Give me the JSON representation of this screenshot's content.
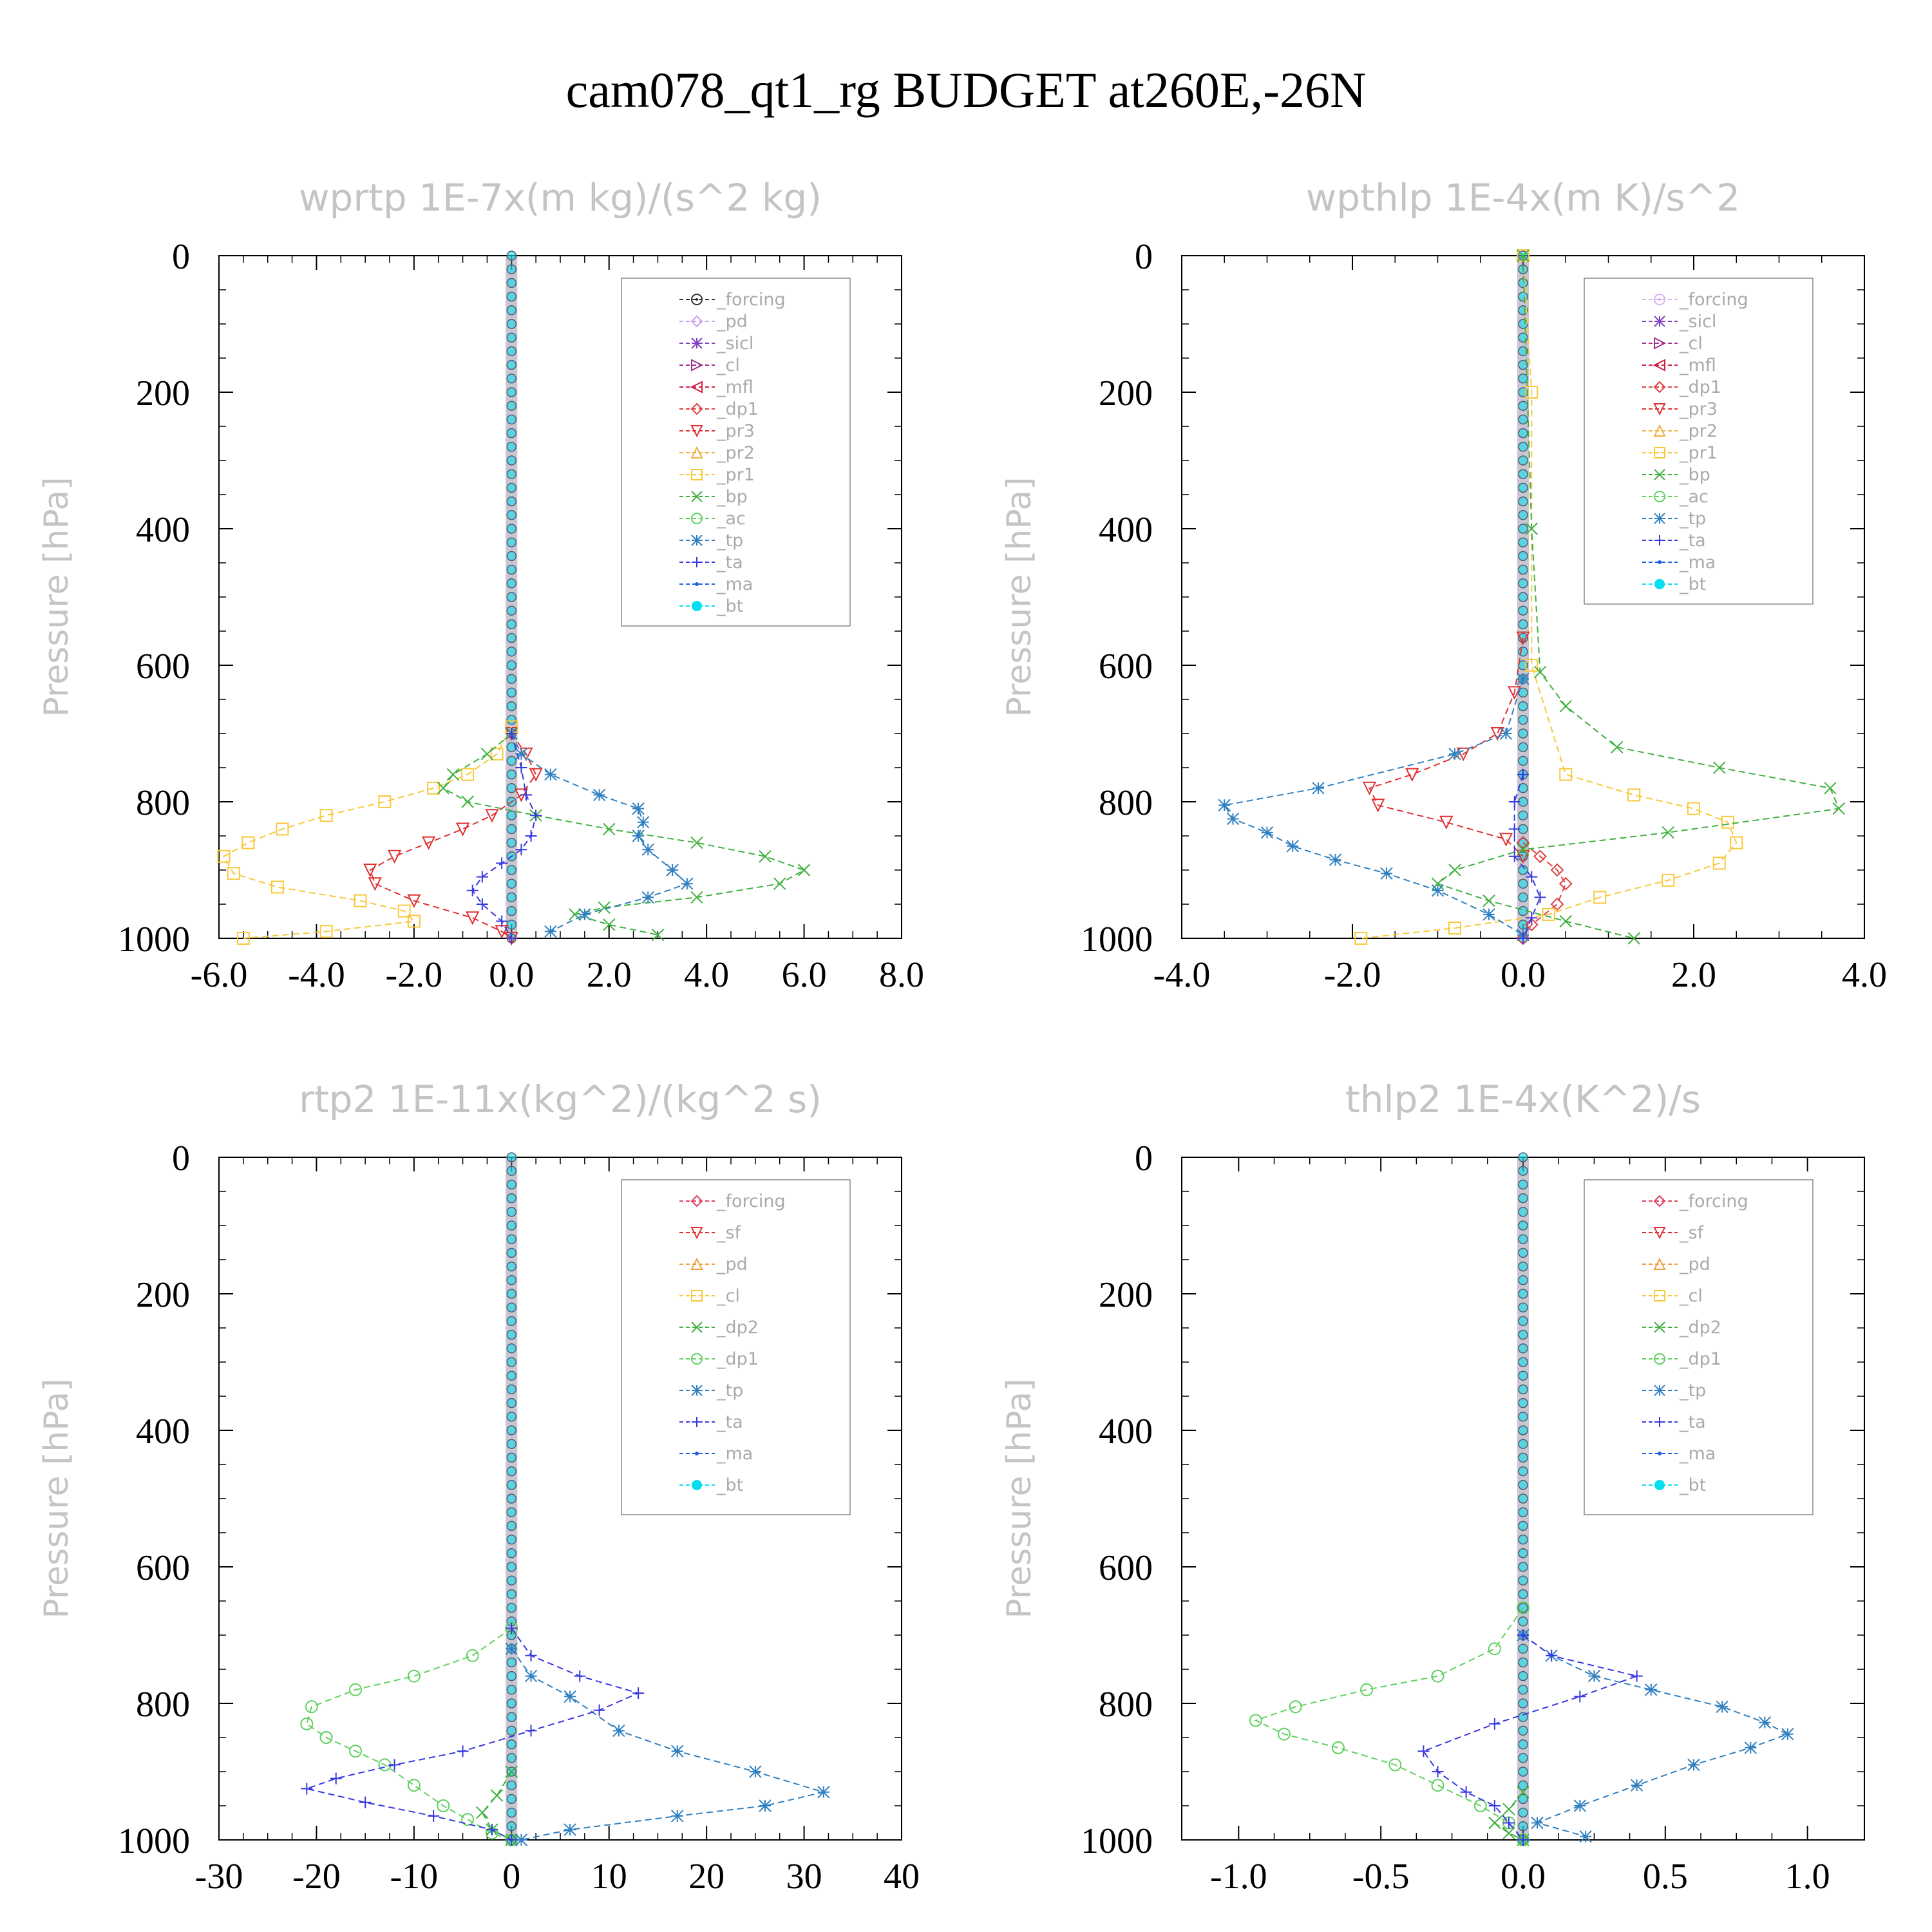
{
  "page": {
    "title": "cam078_qt1_rg  BUDGET at260E,-26N"
  },
  "chart_data": [
    {
      "type": "line",
      "title": "wprtp   1E-7x(m kg)/(s^2 kg)",
      "ylabel": "Pressure [hPa]",
      "xlim": [
        -6.0,
        8.0
      ],
      "ylim": [
        1000,
        0
      ],
      "xticks": [
        "-6.0",
        "-4.0",
        "-2.0",
        "0.0",
        "2.0",
        "4.0",
        "6.0",
        "8.0"
      ],
      "xtick_values": [
        -6,
        -4,
        -2,
        0,
        2,
        4,
        6,
        8
      ],
      "yticks": [
        "0",
        "200",
        "400",
        "600",
        "800",
        "1000"
      ],
      "ytick_values": [
        0,
        200,
        400,
        600,
        800,
        1000
      ],
      "legend_position": "top-right",
      "series": [
        {
          "name": "_forcing",
          "color": "#333333",
          "marker": "circle-dot",
          "x": [],
          "y": []
        },
        {
          "name": "_pd",
          "color": "#c9a0f0",
          "marker": "diamond",
          "x": [],
          "y": []
        },
        {
          "name": "_sicl",
          "color": "#8040c0",
          "marker": "star",
          "x": [],
          "y": []
        },
        {
          "name": "_cl",
          "color": "#a03090",
          "marker": "tri-right",
          "x": [],
          "y": []
        },
        {
          "name": "_mfl",
          "color": "#d02040",
          "marker": "tri-left",
          "x": [],
          "y": []
        },
        {
          "name": "_dp1",
          "color": "#e04040",
          "marker": "diamond",
          "x": [],
          "y": []
        },
        {
          "name": "_pr3",
          "color": "#e03030",
          "marker": "tri-down",
          "x": [
            0.0,
            0.3,
            0.5,
            0.2,
            -0.4,
            -1.0,
            -1.7,
            -2.4,
            -2.9,
            -2.8,
            -2.0,
            -0.8,
            -0.2,
            0.0
          ],
          "y": [
            700,
            730,
            760,
            790,
            820,
            840,
            860,
            880,
            900,
            920,
            945,
            970,
            990,
            1000
          ]
        },
        {
          "name": "_pr2",
          "color": "#f0b040",
          "marker": "tri-up",
          "x": [],
          "y": []
        },
        {
          "name": "_pr1",
          "color": "#f8c838",
          "marker": "square",
          "x": [
            0.0,
            -0.3,
            -0.9,
            -1.6,
            -2.6,
            -3.8,
            -4.7,
            -5.4,
            -5.9,
            -5.7,
            -4.8,
            -3.1,
            -2.2,
            -2.0,
            -3.8,
            -5.5
          ],
          "y": [
            690,
            730,
            760,
            780,
            800,
            820,
            840,
            860,
            880,
            905,
            925,
            945,
            960,
            975,
            990,
            1000
          ]
        },
        {
          "name": "_bp",
          "color": "#40b040",
          "marker": "x",
          "x": [
            0.0,
            -0.5,
            -1.2,
            -1.4,
            -0.9,
            0.5,
            2.0,
            3.8,
            5.2,
            6.0,
            5.5,
            3.8,
            1.9,
            1.3,
            2.0,
            3.0
          ],
          "y": [
            700,
            730,
            760,
            780,
            800,
            820,
            840,
            860,
            880,
            900,
            920,
            940,
            955,
            965,
            980,
            995
          ]
        },
        {
          "name": "_ac",
          "color": "#60d060",
          "marker": "circle",
          "x": [],
          "y": []
        },
        {
          "name": "_tp",
          "color": "#3080c0",
          "marker": "asterisk",
          "x": [
            0.0,
            0.2,
            0.8,
            1.8,
            2.6,
            2.7,
            2.6,
            2.8,
            3.3,
            3.6,
            2.8,
            1.5,
            0.8
          ],
          "y": [
            700,
            730,
            760,
            790,
            810,
            830,
            850,
            870,
            900,
            920,
            940,
            965,
            990
          ]
        },
        {
          "name": "_ta",
          "color": "#3838e0",
          "marker": "plus",
          "x": [
            0.0,
            0.2,
            0.3,
            0.5,
            0.4,
            0.2,
            -0.2,
            -0.6,
            -0.8,
            -0.6,
            -0.2,
            0.0
          ],
          "y": [
            700,
            750,
            790,
            820,
            850,
            870,
            890,
            910,
            930,
            950,
            975,
            1000
          ]
        },
        {
          "name": "_ma",
          "color": "#2060e0",
          "marker": "dot",
          "x": [],
          "y": []
        },
        {
          "name": "_bt",
          "color": "#00e0f0",
          "marker": "filled-circle",
          "x": [],
          "y": []
        }
      ]
    },
    {
      "type": "line",
      "title": "wpthlp   1E-4x(m K)/s^2",
      "ylabel": "Pressure [hPa]",
      "xlim": [
        -4.0,
        4.0
      ],
      "ylim": [
        1000,
        0
      ],
      "xticks": [
        "-4.0",
        "-2.0",
        "0.0",
        "2.0",
        "4.0"
      ],
      "xtick_values": [
        -4,
        -2,
        0,
        2,
        4
      ],
      "yticks": [
        "0",
        "200",
        "400",
        "600",
        "800",
        "1000"
      ],
      "ytick_values": [
        0,
        200,
        400,
        600,
        800,
        1000
      ],
      "legend_position": "top-right",
      "series": [
        {
          "name": "_forcing",
          "color": "#d8b0f0",
          "marker": "circle-dot",
          "x": [],
          "y": []
        },
        {
          "name": "_sicl",
          "color": "#8040c0",
          "marker": "star",
          "x": [],
          "y": []
        },
        {
          "name": "_cl",
          "color": "#a03090",
          "marker": "tri-right",
          "x": [],
          "y": []
        },
        {
          "name": "_mfl",
          "color": "#d02040",
          "marker": "tri-left",
          "x": [],
          "y": []
        },
        {
          "name": "_dp1",
          "color": "#e04040",
          "marker": "diamond",
          "x": [
            0.0,
            0.2,
            0.4,
            0.5,
            0.4,
            0.1,
            0.0
          ],
          "y": [
            860,
            880,
            900,
            920,
            950,
            980,
            1000
          ]
        },
        {
          "name": "_pr3",
          "color": "#e03030",
          "marker": "tri-down",
          "x": [
            0.0,
            -0.1,
            -0.3,
            -0.7,
            -1.3,
            -1.8,
            -1.7,
            -0.9,
            -0.2,
            0.0
          ],
          "y": [
            560,
            640,
            700,
            730,
            760,
            780,
            805,
            830,
            855,
            880
          ]
        },
        {
          "name": "_pr2",
          "color": "#f0b040",
          "marker": "tri-up",
          "x": [],
          "y": []
        },
        {
          "name": "_pr1",
          "color": "#f8c838",
          "marker": "square",
          "x": [
            0.0,
            0.1,
            0.1,
            0.5,
            1.3,
            2.0,
            2.4,
            2.5,
            2.3,
            1.7,
            0.9,
            0.3,
            -0.8,
            -1.9
          ],
          "y": [
            0,
            200,
            600,
            760,
            790,
            810,
            830,
            860,
            890,
            915,
            940,
            965,
            985,
            1000
          ]
        },
        {
          "name": "_bp",
          "color": "#40b040",
          "marker": "x",
          "x": [
            0.0,
            0.1,
            0.2,
            0.5,
            1.1,
            2.3,
            3.6,
            3.7,
            1.7,
            0.0,
            -0.8,
            -1.0,
            -0.4,
            0.5,
            1.3
          ],
          "y": [
            0,
            400,
            610,
            660,
            720,
            750,
            780,
            810,
            845,
            870,
            900,
            920,
            945,
            975,
            1000
          ]
        },
        {
          "name": "_ac",
          "color": "#60d060",
          "marker": "circle",
          "x": [],
          "y": []
        },
        {
          "name": "_tp",
          "color": "#3080c0",
          "marker": "asterisk",
          "x": [
            0.0,
            -0.2,
            -0.8,
            -2.4,
            -3.5,
            -3.4,
            -3.0,
            -2.7,
            -2.2,
            -1.6,
            -1.0,
            -0.4,
            0.0
          ],
          "y": [
            620,
            700,
            730,
            780,
            805,
            825,
            845,
            865,
            885,
            905,
            930,
            965,
            995
          ]
        },
        {
          "name": "_ta",
          "color": "#3838e0",
          "marker": "plus",
          "x": [
            0.0,
            -0.1,
            -0.1,
            -0.1,
            0.1,
            0.2,
            0.1,
            0.0
          ],
          "y": [
            760,
            800,
            840,
            880,
            910,
            940,
            970,
            1000
          ]
        },
        {
          "name": "_ma",
          "color": "#2060e0",
          "marker": "dot",
          "x": [],
          "y": []
        },
        {
          "name": "_bt",
          "color": "#00e0f0",
          "marker": "filled-circle",
          "x": [],
          "y": []
        }
      ]
    },
    {
      "type": "line",
      "title": "rtp2   1E-11x(kg^2)/(kg^2 s)",
      "ylabel": "Pressure [hPa]",
      "xlim": [
        -30,
        40
      ],
      "ylim": [
        1000,
        0
      ],
      "xticks": [
        "-30",
        "-20",
        "-10",
        "0",
        "10",
        "20",
        "30",
        "40"
      ],
      "xtick_values": [
        -30,
        -20,
        -10,
        0,
        10,
        20,
        30,
        40
      ],
      "yticks": [
        "0",
        "200",
        "400",
        "600",
        "800",
        "1000"
      ],
      "ytick_values": [
        0,
        200,
        400,
        600,
        800,
        1000
      ],
      "legend_position": "top-right",
      "series": [
        {
          "name": "_forcing",
          "color": "#e04060",
          "marker": "diamond",
          "x": [],
          "y": []
        },
        {
          "name": "_sf",
          "color": "#e03030",
          "marker": "tri-down",
          "x": [],
          "y": []
        },
        {
          "name": "_pd",
          "color": "#f0a040",
          "marker": "tri-up",
          "x": [],
          "y": []
        },
        {
          "name": "_cl",
          "color": "#f8c838",
          "marker": "square",
          "x": [],
          "y": []
        },
        {
          "name": "_dp2",
          "color": "#40b040",
          "marker": "x",
          "x": [
            0.0,
            -1.5,
            -3.0,
            -2.0,
            0.0
          ],
          "y": [
            900,
            935,
            960,
            985,
            1000
          ]
        },
        {
          "name": "_dp1",
          "color": "#60d060",
          "marker": "circle",
          "x": [
            0.0,
            -4.0,
            -10.0,
            -16.0,
            -20.5,
            -21.0,
            -19.0,
            -16.0,
            -13.0,
            -10.0,
            -7.0,
            -4.5,
            -2.0,
            0.0
          ],
          "y": [
            690,
            730,
            760,
            780,
            805,
            830,
            850,
            870,
            890,
            920,
            950,
            970,
            990,
            1000
          ]
        },
        {
          "name": "_tp",
          "color": "#3080c0",
          "marker": "asterisk",
          "x": [
            0.0,
            2.0,
            6.0,
            11.0,
            17.0,
            25.0,
            32.0,
            26.0,
            17.0,
            6.0,
            1.0
          ],
          "y": [
            720,
            760,
            790,
            840,
            870,
            900,
            930,
            950,
            965,
            985,
            1000
          ]
        },
        {
          "name": "_ta",
          "color": "#3838e0",
          "marker": "plus",
          "x": [
            0.0,
            2.0,
            7.0,
            13.0,
            9.0,
            2.0,
            -5.0,
            -12.0,
            -18.0,
            -21.0,
            -15.0,
            -8.0,
            -2.0,
            0.0
          ],
          "y": [
            690,
            730,
            760,
            785,
            810,
            840,
            870,
            890,
            910,
            925,
            945,
            965,
            985,
            1000
          ]
        },
        {
          "name": "_ma",
          "color": "#2060e0",
          "marker": "dot",
          "x": [],
          "y": []
        },
        {
          "name": "_bt",
          "color": "#00e0f0",
          "marker": "filled-circle",
          "x": [],
          "y": []
        }
      ]
    },
    {
      "type": "line",
      "title": "thlp2   1E-4x(K^2)/s",
      "ylabel": "Pressure [hPa]",
      "xlim": [
        -1.2,
        1.2
      ],
      "ylim": [
        1000,
        0
      ],
      "xticks": [
        "-1.0",
        "-0.5",
        "0.0",
        "0.5",
        "1.0"
      ],
      "xtick_values": [
        -1.0,
        -0.5,
        0.0,
        0.5,
        1.0
      ],
      "yticks": [
        "0",
        "200",
        "400",
        "600",
        "800",
        "1000"
      ],
      "ytick_values": [
        0,
        200,
        400,
        600,
        800,
        1000
      ],
      "legend_position": "top-right",
      "series": [
        {
          "name": "_forcing",
          "color": "#e04060",
          "marker": "diamond",
          "x": [],
          "y": []
        },
        {
          "name": "_sf",
          "color": "#e03030",
          "marker": "tri-down",
          "x": [],
          "y": []
        },
        {
          "name": "_pd",
          "color": "#f0a040",
          "marker": "tri-up",
          "x": [],
          "y": []
        },
        {
          "name": "_cl",
          "color": "#f8c838",
          "marker": "square",
          "x": [],
          "y": []
        },
        {
          "name": "_dp2",
          "color": "#40b040",
          "marker": "x",
          "x": [
            0.0,
            -0.05,
            -0.1,
            -0.05,
            0.0
          ],
          "y": [
            930,
            955,
            975,
            990,
            1000
          ]
        },
        {
          "name": "_dp1",
          "color": "#60d060",
          "marker": "circle",
          "x": [
            0.0,
            -0.1,
            -0.3,
            -0.55,
            -0.8,
            -0.94,
            -0.84,
            -0.65,
            -0.45,
            -0.3,
            -0.15,
            -0.05,
            0.0
          ],
          "y": [
            660,
            720,
            760,
            780,
            805,
            825,
            845,
            865,
            890,
            920,
            950,
            975,
            1000
          ]
        },
        {
          "name": "_tp",
          "color": "#3080c0",
          "marker": "asterisk",
          "x": [
            0.0,
            0.1,
            0.25,
            0.45,
            0.7,
            0.85,
            0.93,
            0.8,
            0.6,
            0.4,
            0.2,
            0.05,
            0.22
          ],
          "y": [
            700,
            730,
            760,
            780,
            805,
            828,
            845,
            865,
            890,
            920,
            950,
            975,
            995
          ]
        },
        {
          "name": "_ta",
          "color": "#3838e0",
          "marker": "plus",
          "x": [
            0.0,
            0.1,
            0.4,
            0.2,
            -0.1,
            -0.35,
            -0.3,
            -0.2,
            -0.1,
            -0.05,
            0.0
          ],
          "y": [
            700,
            730,
            760,
            790,
            830,
            870,
            900,
            930,
            950,
            975,
            1000
          ]
        },
        {
          "name": "_ma",
          "color": "#2060e0",
          "marker": "dot",
          "x": [],
          "y": []
        },
        {
          "name": "_bt",
          "color": "#00e0f0",
          "marker": "filled-circle",
          "x": [],
          "y": []
        }
      ]
    }
  ]
}
